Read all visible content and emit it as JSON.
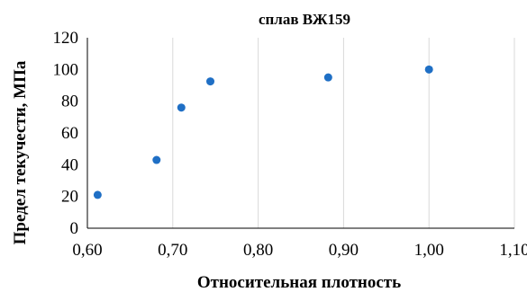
{
  "chart_data": {
    "type": "scatter",
    "title": "сплав ВЖ159",
    "xlabel": "Относительная плотность",
    "ylabel": "Предел текучести, МПа",
    "xlim": [
      0.6,
      1.1
    ],
    "ylim": [
      0,
      120
    ],
    "x_ticks": [
      "0,60",
      "0,70",
      "0,80",
      "0,90",
      "1,00",
      "1,10"
    ],
    "y_ticks": [
      "0",
      "20",
      "40",
      "60",
      "80",
      "100",
      "120"
    ],
    "x_tick_values": [
      0.6,
      0.7,
      0.8,
      0.9,
      1.0,
      1.1
    ],
    "y_tick_values": [
      0,
      20,
      40,
      60,
      80,
      100,
      120
    ],
    "grid": "vertical",
    "legend": "none",
    "marker_color": "#1f6fc5",
    "series": [
      {
        "points": [
          {
            "x": 0.612,
            "y": 21
          },
          {
            "x": 0.681,
            "y": 43
          },
          {
            "x": 0.71,
            "y": 76
          },
          {
            "x": 0.744,
            "y": 92.5
          },
          {
            "x": 0.882,
            "y": 95
          },
          {
            "x": 1.0,
            "y": 100
          }
        ]
      }
    ]
  }
}
